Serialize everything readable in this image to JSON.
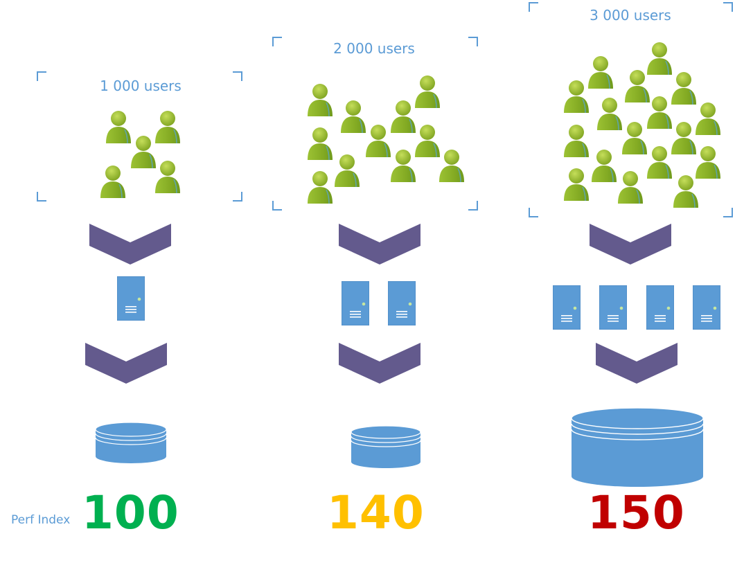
{
  "perf_label": "Perf Index",
  "columns": [
    {
      "users_label": "1 000 users",
      "users_icon": "user-icon",
      "servers": 1,
      "database": "database-icon",
      "score": "100",
      "score_color": "#00b050"
    },
    {
      "users_label": "2 000 users",
      "users_icon": "user-icon",
      "servers": 2,
      "database": "database-icon",
      "score": "140",
      "score_color": "#ffc000"
    },
    {
      "users_label": "3 000 users",
      "users_icon": "user-icon",
      "servers": 4,
      "database": "database-icon",
      "score": "150",
      "score_color": "#c00000"
    }
  ],
  "colors": {
    "user": "#8db52a",
    "arrow": "#635a8d",
    "server": "#5b9bd5",
    "database": "#5b9bd5",
    "bracket": "#5b9bd5",
    "text": "#5b9bd5"
  }
}
